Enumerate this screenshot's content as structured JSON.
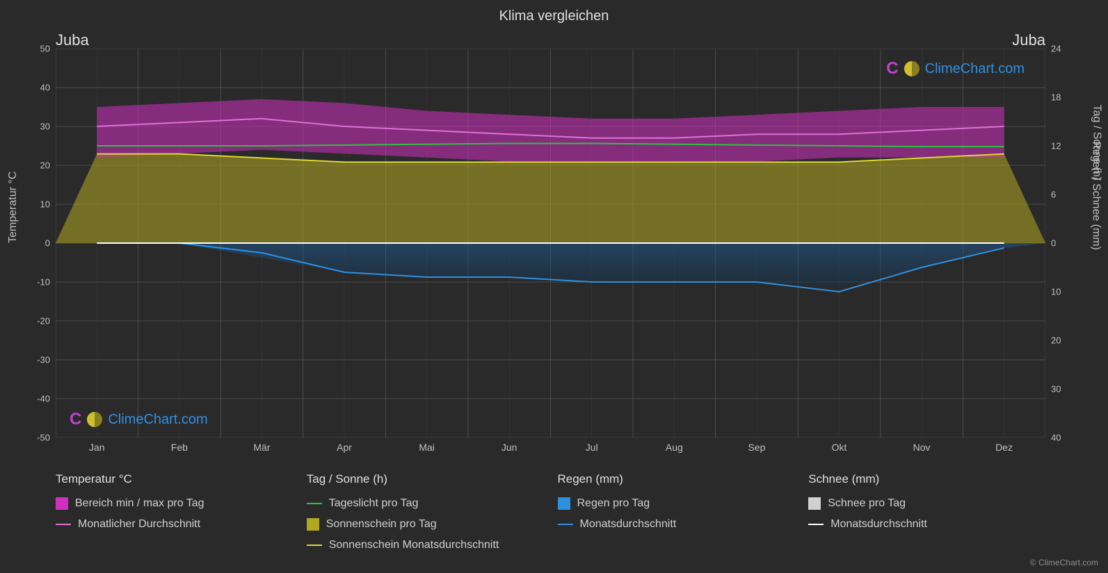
{
  "title": "Klima vergleichen",
  "location_left": "Juba",
  "location_right": "Juba",
  "brand": "ClimeChart.com",
  "copyright": "© ClimeChart.com",
  "chart": {
    "type": "composite-line-area",
    "background_color": "#2a2a2a",
    "plot_bg": "#2a2a2a",
    "grid_color": "#555555",
    "grid_width": 1,
    "months": [
      "Jan",
      "Feb",
      "Mär",
      "Apr",
      "Mai",
      "Jun",
      "Jul",
      "Aug",
      "Sep",
      "Okt",
      "Nov",
      "Dez"
    ],
    "axis_left": {
      "label": "Temperatur °C",
      "min": -50,
      "max": 50,
      "step": 10,
      "ticks": [
        50,
        40,
        30,
        20,
        10,
        0,
        -10,
        -20,
        -30,
        -40,
        -50
      ]
    },
    "axis_right_top": {
      "label": "Tag / Sonne (h)",
      "min": 0,
      "max": 24,
      "step": 6,
      "ticks": [
        24,
        18,
        12,
        6,
        0
      ]
    },
    "axis_right_bot": {
      "label": "Regen / Schnee (mm)",
      "min": 0,
      "max": 40,
      "step": 10,
      "ticks": [
        0,
        10,
        20,
        30,
        40
      ]
    },
    "series": {
      "temp_range": {
        "color": "#d030c0",
        "opacity": 0.55,
        "max": [
          35,
          36,
          37,
          36,
          34,
          33,
          32,
          32,
          33,
          34,
          35,
          35
        ],
        "min": [
          22,
          23,
          24,
          23,
          22,
          21,
          21,
          21,
          21,
          22,
          22,
          22
        ]
      },
      "temp_monthly_avg": {
        "color": "#e070d8",
        "width": 2,
        "values": [
          30,
          31,
          32,
          30,
          29,
          28,
          27,
          27,
          28,
          28,
          29,
          30
        ]
      },
      "daylight": {
        "color": "#30c040",
        "width": 2,
        "values": [
          12.0,
          12.0,
          12.0,
          12.1,
          12.2,
          12.3,
          12.3,
          12.2,
          12.1,
          12.0,
          11.9,
          11.9
        ]
      },
      "sunshine_area": {
        "color": "#b0a820",
        "opacity": 0.55,
        "values": [
          11,
          11,
          10.5,
          10,
          10,
          10,
          10,
          10,
          10,
          10,
          10.5,
          11
        ]
      },
      "sunshine_monthly": {
        "color": "#e0d830",
        "width": 2,
        "values": [
          11,
          11,
          10.5,
          10,
          10,
          10,
          10,
          10,
          10,
          10,
          10.5,
          11
        ]
      },
      "rain_daily_area": {
        "color_top": "#2060a0",
        "color_bot": "#10304a",
        "opacity": 0.45,
        "values": [
          0,
          0,
          3,
          6,
          7,
          7,
          8,
          8,
          8,
          9,
          5,
          1
        ]
      },
      "rain_monthly": {
        "color": "#3090e0",
        "width": 2,
        "values": [
          0,
          0,
          2,
          6,
          7,
          7,
          8,
          8,
          8,
          10,
          5,
          1
        ]
      },
      "snow_monthly": {
        "color": "#ffffff",
        "width": 2,
        "values": [
          0,
          0,
          0,
          0,
          0,
          0,
          0,
          0,
          0,
          0,
          0,
          0
        ]
      }
    }
  },
  "legend": {
    "groups": [
      {
        "heading": "Temperatur °C",
        "items": [
          {
            "kind": "box",
            "color": "#d030c0",
            "label": "Bereich min / max pro Tag"
          },
          {
            "kind": "line",
            "color": "#e070d8",
            "label": "Monatlicher Durchschnitt"
          }
        ]
      },
      {
        "heading": "Tag / Sonne (h)",
        "items": [
          {
            "kind": "line",
            "color": "#30c040",
            "label": "Tageslicht pro Tag"
          },
          {
            "kind": "box",
            "color": "#b0a820",
            "label": "Sonnenschein pro Tag"
          },
          {
            "kind": "line",
            "color": "#e0d830",
            "label": "Sonnenschein Monatsdurchschnitt"
          }
        ]
      },
      {
        "heading": "Regen (mm)",
        "items": [
          {
            "kind": "box",
            "color": "#3090e0",
            "label": "Regen pro Tag"
          },
          {
            "kind": "line",
            "color": "#3090e0",
            "label": "Monatsdurchschnitt"
          }
        ]
      },
      {
        "heading": "Schnee (mm)",
        "items": [
          {
            "kind": "box",
            "color": "#d0d0d0",
            "label": "Schnee pro Tag"
          },
          {
            "kind": "line",
            "color": "#ffffff",
            "label": "Monatsdurchschnitt"
          }
        ]
      }
    ]
  }
}
